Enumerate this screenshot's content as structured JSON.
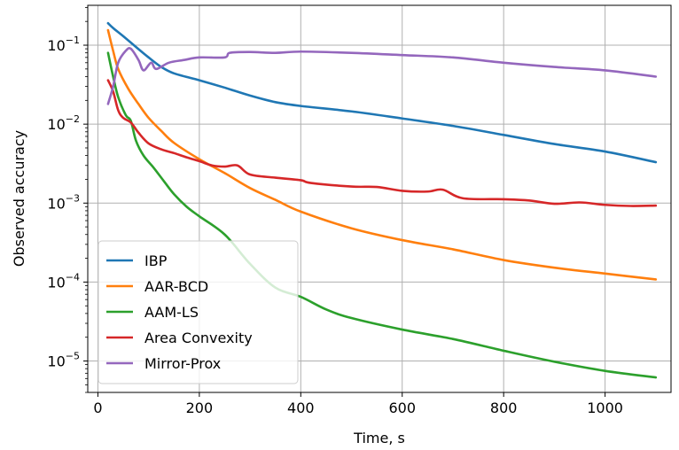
{
  "chart_data": {
    "type": "line",
    "title": "",
    "xlabel": "Time, s",
    "ylabel": "Observed accuracy",
    "xlim": [
      -20,
      1130
    ],
    "ylim": [
      4e-06,
      0.32
    ],
    "yscale": "log",
    "grid": true,
    "legend_position": "lower-left",
    "x_ticks": [
      0,
      200,
      400,
      600,
      800,
      1000
    ],
    "x_tick_labels": [
      "0",
      "200",
      "400",
      "600",
      "800",
      "1000"
    ],
    "y_ticks": [
      1e-05,
      0.0001,
      0.001,
      0.01,
      0.1
    ],
    "y_tick_labels": [
      {
        "base": "10",
        "exp": "−5"
      },
      {
        "base": "10",
        "exp": "−4"
      },
      {
        "base": "10",
        "exp": "−3"
      },
      {
        "base": "10",
        "exp": "−2"
      },
      {
        "base": "10",
        "exp": "−1"
      }
    ],
    "series": [
      {
        "name": "IBP",
        "color": "#1f77b4",
        "points": [
          [
            20,
            0.19
          ],
          [
            30,
            0.165
          ],
          [
            50,
            0.13
          ],
          [
            75,
            0.095
          ],
          [
            100,
            0.07
          ],
          [
            125,
            0.053
          ],
          [
            150,
            0.044
          ],
          [
            200,
            0.036
          ],
          [
            250,
            0.029
          ],
          [
            300,
            0.023
          ],
          [
            350,
            0.019
          ],
          [
            400,
            0.017
          ],
          [
            500,
            0.0145
          ],
          [
            600,
            0.0118
          ],
          [
            700,
            0.0095
          ],
          [
            800,
            0.0073
          ],
          [
            900,
            0.0056
          ],
          [
            1000,
            0.0045
          ],
          [
            1100,
            0.0033
          ]
        ]
      },
      {
        "name": "AAR-BCD",
        "color": "#ff7f0e",
        "points": [
          [
            20,
            0.155
          ],
          [
            30,
            0.085
          ],
          [
            40,
            0.05
          ],
          [
            60,
            0.028
          ],
          [
            80,
            0.018
          ],
          [
            100,
            0.012
          ],
          [
            125,
            0.0082
          ],
          [
            150,
            0.0058
          ],
          [
            200,
            0.0036
          ],
          [
            250,
            0.0024
          ],
          [
            300,
            0.00155
          ],
          [
            350,
            0.0011
          ],
          [
            400,
            0.00078
          ],
          [
            500,
            0.00048
          ],
          [
            600,
            0.00034
          ],
          [
            700,
            0.00026
          ],
          [
            800,
            0.00019
          ],
          [
            900,
            0.000152
          ],
          [
            1000,
            0.000128
          ],
          [
            1100,
            0.000108
          ]
        ]
      },
      {
        "name": "AAM-LS",
        "color": "#2ca02c",
        "points": [
          [
            20,
            0.08
          ],
          [
            30,
            0.04
          ],
          [
            40,
            0.022
          ],
          [
            55,
            0.013
          ],
          [
            65,
            0.011
          ],
          [
            75,
            0.0062
          ],
          [
            90,
            0.004
          ],
          [
            110,
            0.0028
          ],
          [
            130,
            0.0019
          ],
          [
            150,
            0.0013
          ],
          [
            175,
            0.0009
          ],
          [
            200,
            0.00068
          ],
          [
            250,
            0.0004
          ],
          [
            300,
            0.00017
          ],
          [
            350,
            8.5e-05
          ],
          [
            400,
            6.5e-05
          ],
          [
            450,
            4.5e-05
          ],
          [
            500,
            3.5e-05
          ],
          [
            600,
            2.5e-05
          ],
          [
            700,
            1.9e-05
          ],
          [
            800,
            1.35e-05
          ],
          [
            900,
            9.8e-06
          ],
          [
            1000,
            7.5e-06
          ],
          [
            1100,
            6.2e-06
          ]
        ]
      },
      {
        "name": "Area Convexity",
        "color": "#d62728",
        "points": [
          [
            20,
            0.036
          ],
          [
            30,
            0.026
          ],
          [
            40,
            0.015
          ],
          [
            50,
            0.012
          ],
          [
            65,
            0.0105
          ],
          [
            80,
            0.0078
          ],
          [
            100,
            0.0057
          ],
          [
            125,
            0.0048
          ],
          [
            150,
            0.0043
          ],
          [
            175,
            0.0038
          ],
          [
            200,
            0.0034
          ],
          [
            225,
            0.003
          ],
          [
            250,
            0.0029
          ],
          [
            275,
            0.003
          ],
          [
            300,
            0.0023
          ],
          [
            350,
            0.0021
          ],
          [
            400,
            0.00195
          ],
          [
            420,
            0.0018
          ],
          [
            500,
            0.00162
          ],
          [
            550,
            0.0016
          ],
          [
            600,
            0.00143
          ],
          [
            650,
            0.0014
          ],
          [
            680,
            0.00148
          ],
          [
            720,
            0.00115
          ],
          [
            800,
            0.00112
          ],
          [
            850,
            0.00108
          ],
          [
            900,
            0.00098
          ],
          [
            950,
            0.00102
          ],
          [
            1000,
            0.00095
          ],
          [
            1050,
            0.00092
          ],
          [
            1100,
            0.00093
          ]
        ]
      },
      {
        "name": "Mirror-Prox",
        "color": "#9467bd",
        "points": [
          [
            20,
            0.018
          ],
          [
            30,
            0.03
          ],
          [
            40,
            0.06
          ],
          [
            55,
            0.085
          ],
          [
            65,
            0.09
          ],
          [
            80,
            0.065
          ],
          [
            90,
            0.048
          ],
          [
            105,
            0.06
          ],
          [
            115,
            0.05
          ],
          [
            140,
            0.06
          ],
          [
            170,
            0.065
          ],
          [
            200,
            0.07
          ],
          [
            250,
            0.07
          ],
          [
            260,
            0.08
          ],
          [
            300,
            0.082
          ],
          [
            350,
            0.08
          ],
          [
            400,
            0.083
          ],
          [
            500,
            0.08
          ],
          [
            600,
            0.075
          ],
          [
            700,
            0.07
          ],
          [
            800,
            0.06
          ],
          [
            900,
            0.053
          ],
          [
            1000,
            0.048
          ],
          [
            1100,
            0.04
          ]
        ]
      }
    ]
  }
}
